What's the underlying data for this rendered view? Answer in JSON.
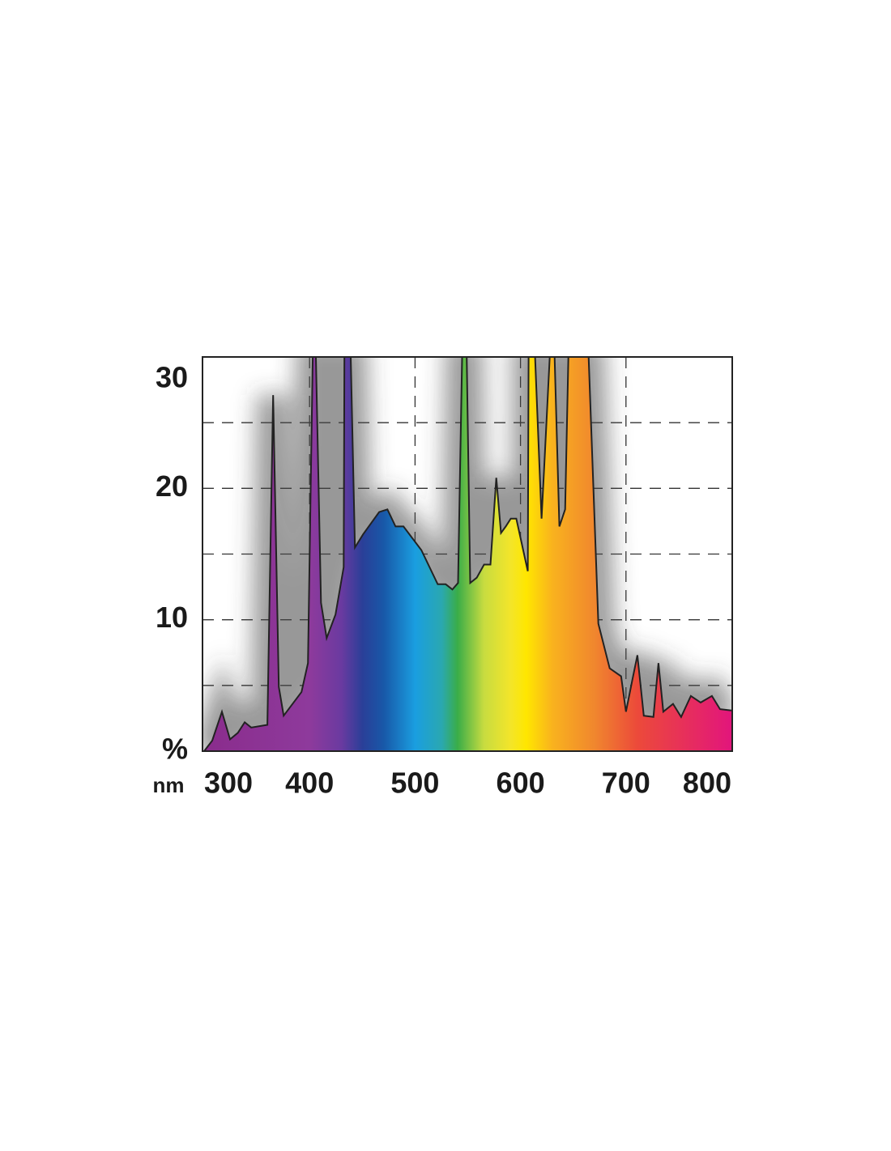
{
  "chart_data": {
    "type": "area",
    "x": [
      300,
      307.7,
      316.9,
      324.6,
      332,
      338.5,
      344.6,
      360,
      365.4,
      370.8,
      375.4,
      392.3,
      398.5,
      403,
      406,
      410.8,
      416.2,
      424.6,
      432.3,
      433,
      439,
      443,
      450.8,
      466,
      473.8,
      481.5,
      489,
      506,
      521.5,
      529,
      535.4,
      540.8,
      544.6,
      549,
      552.3,
      558.5,
      565.4,
      571.5,
      577,
      581.5,
      586,
      590.8,
      596,
      606.9,
      607.7,
      613.8,
      620,
      623,
      627.7,
      632.3,
      636.9,
      642.3,
      645.4,
      664.6,
      673.8,
      684.6,
      695.4,
      700,
      706,
      710.8,
      716.9,
      726,
      730.8,
      735.4,
      744.6,
      752.3,
      761.5,
      770.8,
      781.5,
      789.2,
      800
    ],
    "values": [
      0,
      0.8,
      3.0,
      0.9,
      1.4,
      2.2,
      1.8,
      2.0,
      27.1,
      4.9,
      2.7,
      4.5,
      6.7,
      30,
      30,
      11.3,
      8.6,
      10.4,
      14.0,
      30,
      30,
      15.5,
      16.5,
      18.2,
      18.4,
      17.1,
      17.1,
      15.3,
      12.7,
      12.7,
      12.3,
      12.8,
      30,
      30,
      12.8,
      13.2,
      14.2,
      14.2,
      20.8,
      16.6,
      17.1,
      17.7,
      17.7,
      13.7,
      30,
      30,
      17.7,
      22.4,
      30,
      30,
      17.1,
      18.4,
      30,
      30,
      9.7,
      6.3,
      5.7,
      3.0,
      5.4,
      7.3,
      2.7,
      2.6,
      6.7,
      3.0,
      3.6,
      2.6,
      4.2,
      3.7,
      4.2,
      3.2,
      3.1
    ],
    "x_unit": "nm",
    "xlim": [
      300,
      800
    ],
    "xticks": [
      300,
      400,
      500,
      600,
      700,
      800
    ],
    "ylim": [
      0,
      30
    ],
    "yticks": [
      {
        "value": 0,
        "label": "%"
      },
      10,
      20,
      30
    ],
    "grid_x": [
      400,
      500,
      600,
      700
    ],
    "grid_y": [
      5,
      10,
      15,
      20,
      25
    ],
    "grid": true
  }
}
